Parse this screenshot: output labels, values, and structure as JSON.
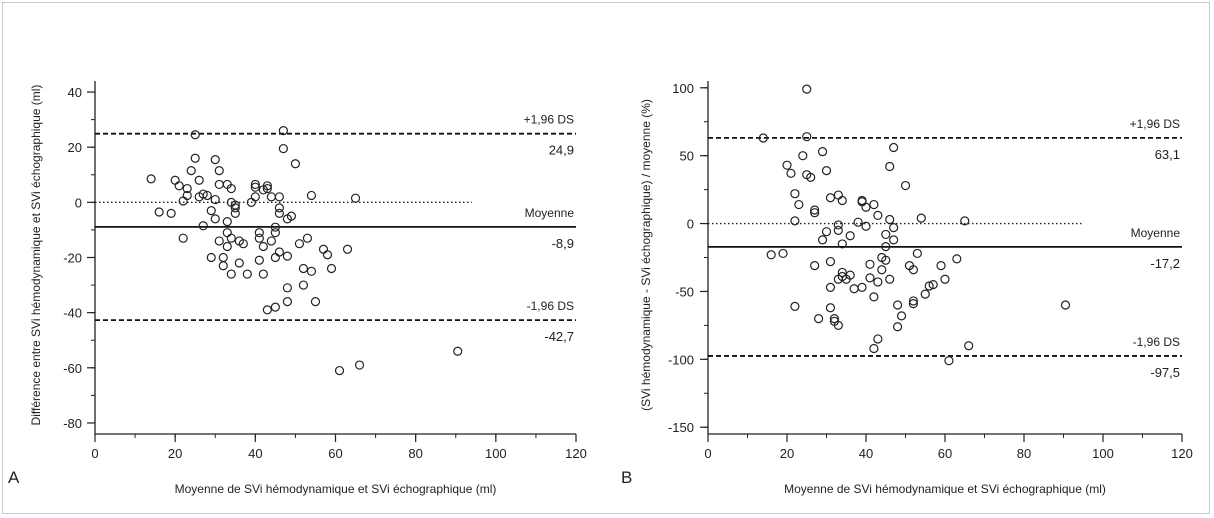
{
  "chart_data": [
    {
      "panel_label": "A",
      "type": "scatter",
      "xlabel": "Moyenne de SVi hémodynamique et SVi échographique (ml)",
      "ylabel": "Différence entre SVi hémodynamique et SVi échographique (ml)",
      "xlim": [
        0,
        120
      ],
      "ylim": [
        -84,
        44
      ],
      "xticks": [
        0,
        20,
        40,
        60,
        80,
        100,
        120
      ],
      "yticks": [
        40,
        20,
        0,
        -20,
        -40,
        -60,
        -80
      ],
      "x_minor_step": 10,
      "y_minor_step": 10,
      "zero_line": {
        "y": 0,
        "x_end": 94
      },
      "lines": [
        {
          "kind": "upper",
          "style": "dashed",
          "y": 24.9,
          "name": "+1,96 DS",
          "value_label": "24,9"
        },
        {
          "kind": "mean",
          "style": "solid",
          "y": -8.9,
          "name": "Moyenne",
          "value_label": "-8,9"
        },
        {
          "kind": "lower",
          "style": "dashed",
          "y": -42.7,
          "name": "-1,96 DS",
          "value_label": "-42,7"
        }
      ],
      "points": [
        [
          14,
          8.5
        ],
        [
          16,
          -3.5
        ],
        [
          19,
          -4
        ],
        [
          20,
          8
        ],
        [
          21,
          6
        ],
        [
          22,
          -13
        ],
        [
          22,
          0.5
        ],
        [
          23,
          2.5
        ],
        [
          23,
          5
        ],
        [
          24,
          11.5
        ],
        [
          25,
          24.5
        ],
        [
          25,
          16
        ],
        [
          26,
          8
        ],
        [
          26,
          2
        ],
        [
          27,
          -8.5
        ],
        [
          27,
          3
        ],
        [
          28,
          2.5
        ],
        [
          29,
          -20
        ],
        [
          29,
          -3
        ],
        [
          30,
          -6
        ],
        [
          30,
          1
        ],
        [
          30,
          15.5
        ],
        [
          31,
          11.5
        ],
        [
          31,
          6.5
        ],
        [
          31,
          -14
        ],
        [
          32,
          -20
        ],
        [
          32,
          -23
        ],
        [
          33,
          -7
        ],
        [
          33,
          -11
        ],
        [
          33,
          -16
        ],
        [
          33,
          6.5
        ],
        [
          34,
          5
        ],
        [
          34,
          -26
        ],
        [
          34,
          -13
        ],
        [
          34,
          0
        ],
        [
          35,
          -4
        ],
        [
          35,
          -2
        ],
        [
          35,
          -1
        ],
        [
          36,
          -14
        ],
        [
          36,
          -22
        ],
        [
          37,
          -15
        ],
        [
          38,
          -26
        ],
        [
          39,
          0
        ],
        [
          40,
          6.5
        ],
        [
          40,
          5.5
        ],
        [
          40,
          2
        ],
        [
          41,
          -11
        ],
        [
          41,
          -21
        ],
        [
          41,
          -13
        ],
        [
          42,
          -26
        ],
        [
          42,
          -16
        ],
        [
          42,
          4.5
        ],
        [
          43,
          6
        ],
        [
          43,
          5
        ],
        [
          43,
          -39
        ],
        [
          44,
          2
        ],
        [
          44,
          -14
        ],
        [
          45,
          -38
        ],
        [
          45,
          -20
        ],
        [
          45,
          -11
        ],
        [
          45,
          -9
        ],
        [
          46,
          -2
        ],
        [
          46,
          -18
        ],
        [
          46,
          -4
        ],
        [
          46,
          2
        ],
        [
          47,
          19.5
        ],
        [
          47,
          26
        ],
        [
          48,
          -6
        ],
        [
          48,
          -19.5
        ],
        [
          48,
          -31
        ],
        [
          48,
          -36
        ],
        [
          49,
          -5
        ],
        [
          50,
          14
        ],
        [
          51,
          -15
        ],
        [
          52,
          -30
        ],
        [
          52,
          -24
        ],
        [
          53,
          -13
        ],
        [
          54,
          2.5
        ],
        [
          54,
          -25
        ],
        [
          55,
          -36
        ],
        [
          57,
          -17
        ],
        [
          58,
          -19
        ],
        [
          59,
          -24
        ],
        [
          63,
          -17
        ],
        [
          65,
          1.5
        ],
        [
          61,
          -61
        ],
        [
          66,
          -59
        ],
        [
          90.5,
          -54
        ]
      ]
    },
    {
      "panel_label": "B",
      "type": "scatter",
      "xlabel": "Moyenne de SVi hémodynamique et SVi échographique (ml)",
      "ylabel": "(SVi hémodynamique - SVi échographique) / moyenne  (%)",
      "xlim": [
        0,
        120
      ],
      "ylim": [
        -155,
        105
      ],
      "xticks": [
        0,
        20,
        40,
        60,
        80,
        100,
        120
      ],
      "yticks": [
        100,
        50,
        0,
        -50,
        -100,
        -150
      ],
      "x_minor_step": 10,
      "y_minor_step": 25,
      "zero_line": {
        "y": 0,
        "x_end": 95
      },
      "lines": [
        {
          "kind": "upper",
          "style": "dashed",
          "y": 63.1,
          "name": "+1,96 DS",
          "value_label": "63,1"
        },
        {
          "kind": "mean",
          "style": "solid",
          "y": -17.2,
          "name": "Moyenne",
          "value_label": "-17,2"
        },
        {
          "kind": "lower",
          "style": "dashed",
          "y": -97.5,
          "name": "-1,96 DS",
          "value_label": "-97,5"
        }
      ],
      "points": [
        [
          14,
          63
        ],
        [
          16,
          -23
        ],
        [
          19,
          -22
        ],
        [
          20,
          43
        ],
        [
          21,
          37
        ],
        [
          22,
          -61
        ],
        [
          22,
          22
        ],
        [
          22,
          2
        ],
        [
          23,
          14
        ],
        [
          24,
          50
        ],
        [
          25,
          99
        ],
        [
          25,
          64
        ],
        [
          25,
          36
        ],
        [
          26,
          34
        ],
        [
          27,
          10
        ],
        [
          27,
          8
        ],
        [
          27,
          -31
        ],
        [
          28,
          -70
        ],
        [
          29,
          -12
        ],
        [
          29,
          53
        ],
        [
          30,
          39
        ],
        [
          30,
          -6
        ],
        [
          31,
          19
        ],
        [
          31,
          -28
        ],
        [
          31,
          -47
        ],
        [
          31,
          -62
        ],
        [
          32,
          -70
        ],
        [
          32,
          -72
        ],
        [
          33,
          21
        ],
        [
          33,
          -1
        ],
        [
          33,
          -5
        ],
        [
          33,
          -41
        ],
        [
          33,
          -75
        ],
        [
          34,
          -15
        ],
        [
          34,
          17
        ],
        [
          34,
          -36
        ],
        [
          34,
          -39
        ],
        [
          35,
          -41
        ],
        [
          36,
          -9
        ],
        [
          36,
          -38
        ],
        [
          37,
          -48
        ],
        [
          38,
          1
        ],
        [
          39,
          16
        ],
        [
          39,
          -47
        ],
        [
          39,
          17
        ],
        [
          40,
          12
        ],
        [
          40,
          -2
        ],
        [
          41,
          -30
        ],
        [
          41,
          -40
        ],
        [
          42,
          14
        ],
        [
          42,
          -54
        ],
        [
          42,
          -92
        ],
        [
          43,
          6
        ],
        [
          43,
          -43
        ],
        [
          43,
          -85
        ],
        [
          44,
          -25
        ],
        [
          44,
          -34
        ],
        [
          45,
          -27
        ],
        [
          45,
          -8
        ],
        [
          45,
          -17
        ],
        [
          46,
          42
        ],
        [
          46,
          3
        ],
        [
          46,
          -41
        ],
        [
          47,
          56
        ],
        [
          47,
          -3
        ],
        [
          47,
          -12
        ],
        [
          48,
          -60
        ],
        [
          48,
          -76
        ],
        [
          49,
          -68
        ],
        [
          50,
          28
        ],
        [
          51,
          -31
        ],
        [
          52,
          -34
        ],
        [
          52,
          -57
        ],
        [
          52,
          -59
        ],
        [
          53,
          -22
        ],
        [
          54,
          4
        ],
        [
          55,
          -52
        ],
        [
          56,
          -46
        ],
        [
          57,
          -45
        ],
        [
          59,
          -31
        ],
        [
          60,
          -41
        ],
        [
          61,
          -101
        ],
        [
          63,
          -26
        ],
        [
          65,
          2
        ],
        [
          66,
          -90
        ],
        [
          90.5,
          -60
        ]
      ]
    }
  ]
}
